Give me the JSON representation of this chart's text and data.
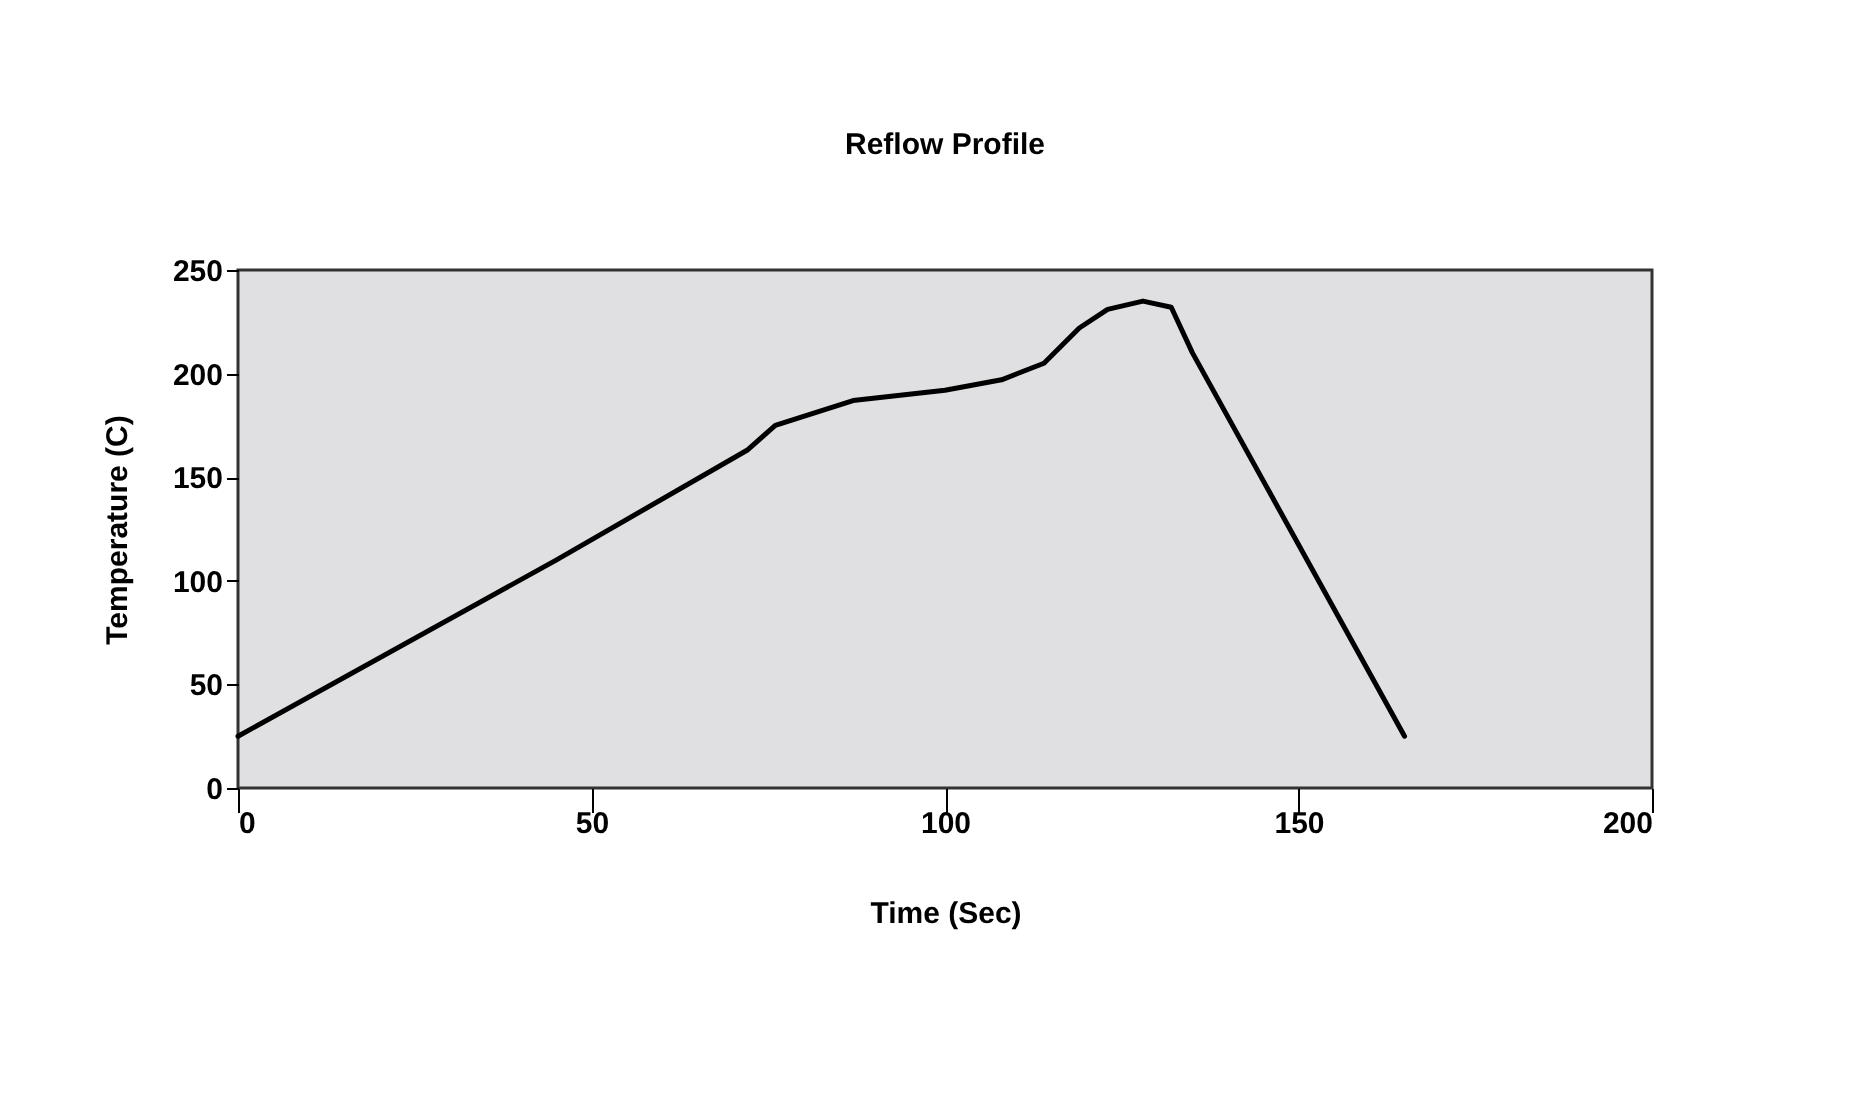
{
  "chart_data": {
    "type": "line",
    "title": "Reflow Profile",
    "xlabel": "Time (Sec)",
    "ylabel": "Temperature (C)",
    "x": [
      0,
      45,
      72,
      76,
      87,
      100,
      108,
      114,
      119,
      123,
      128,
      132,
      135,
      165
    ],
    "series": [
      {
        "color": "#000000",
        "values": [
          25,
          110,
          163,
          175,
          187,
          192,
          197,
          205,
          222,
          231,
          235,
          232,
          210,
          25
        ]
      }
    ],
    "xlim": [
      0,
      200
    ],
    "xticks": [
      0,
      50,
      100,
      150,
      200
    ],
    "ylim": [
      0,
      250
    ],
    "yticks": [
      0,
      50,
      100,
      150,
      200,
      250
    ],
    "grid": false,
    "marker": "none",
    "line_style": "solid"
  }
}
